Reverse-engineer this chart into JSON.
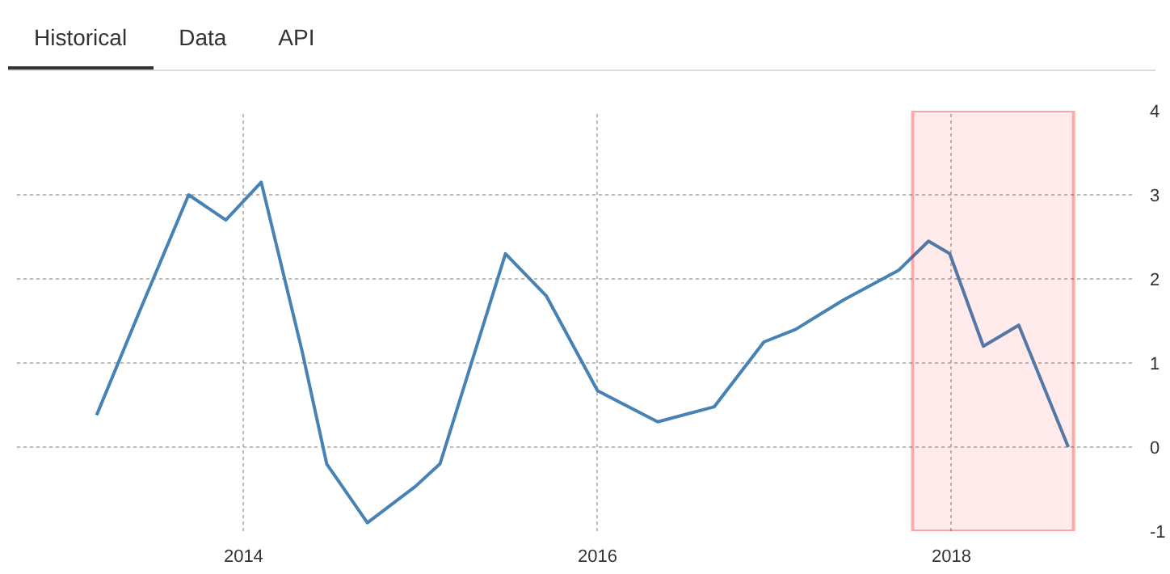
{
  "chart_data": {
    "type": "line",
    "annotations": [
      "Historical",
      "Data",
      "API"
    ],
    "x": [
      2013.17,
      2013.41,
      2013.69,
      2013.9,
      2014.1,
      2014.33,
      2014.47,
      2014.7,
      2014.97,
      2015.11,
      2015.48,
      2015.71,
      2016.0,
      2016.34,
      2016.66,
      2016.94,
      2017.12,
      2017.39,
      2017.7,
      2017.87,
      2017.99,
      2018.18,
      2018.38,
      2018.66
    ],
    "series": [
      {
        "color": "#4682b4",
        "values": [
          0.38,
          1.6,
          3.0,
          2.7,
          3.15,
          1.15,
          -0.2,
          -0.9,
          -0.47,
          -0.2,
          2.3,
          1.8,
          0.67,
          0.3,
          0.48,
          1.25,
          1.4,
          1.75,
          2.1,
          2.45,
          2.3,
          1.2,
          1.45,
          0.0
        ]
      }
    ],
    "xlim": [
      2012.72,
      2019.02
    ],
    "xticks": [
      2014,
      2016,
      2018
    ],
    "ylim": [
      -1,
      4
    ],
    "yticks": [
      -1,
      0,
      1,
      2,
      3,
      4
    ],
    "grid": true,
    "line_style": "solid",
    "bands": [
      {
        "axis": "x",
        "from": 2017.78,
        "to": 2018.69,
        "color": "#ff0000"
      }
    ]
  }
}
